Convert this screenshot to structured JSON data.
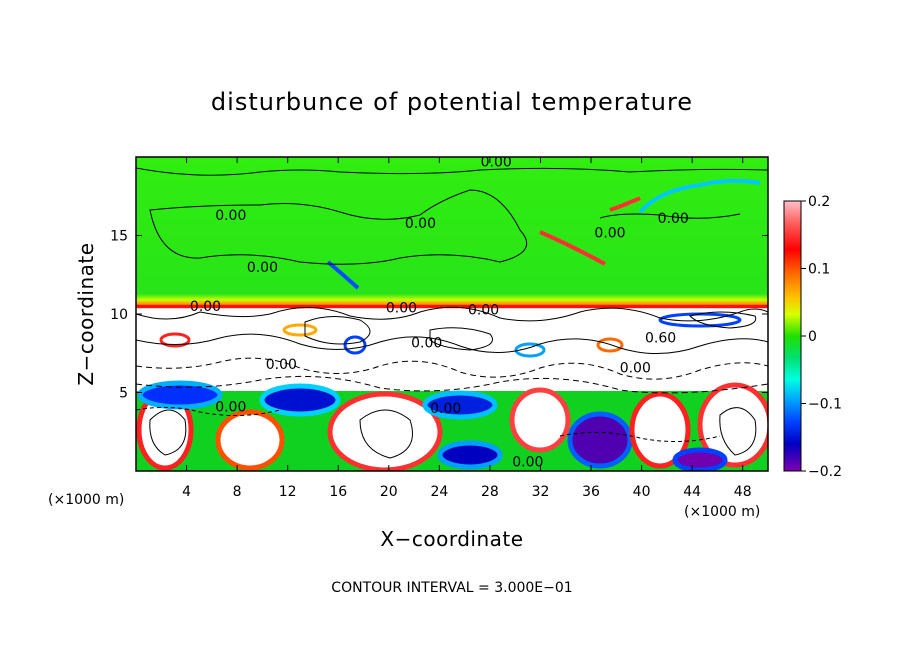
{
  "chart_data": {
    "type": "heatmap",
    "title": "disturbunce of potential temperature",
    "xlabel": "X−coordinate",
    "ylabel": "Z−coordinate",
    "x_unit": "(×1000 m)",
    "y_unit": "(×1000 m)",
    "xlim": [
      0,
      50
    ],
    "ylim": [
      0,
      20
    ],
    "x_ticks": [
      4,
      8,
      12,
      16,
      20,
      24,
      28,
      32,
      36,
      40,
      44,
      48
    ],
    "y_ticks": [
      5,
      10,
      15
    ],
    "colorbar": {
      "vmin": -0.2,
      "vmax": 0.2,
      "ticks": [
        0.2,
        0.1,
        0,
        -0.1,
        -0.2
      ],
      "tick_labels": [
        "0.2",
        "0.1",
        "0",
        "−0.1",
        "−0.2"
      ],
      "colors": [
        "#ffc0cb",
        "#ff4040",
        "#ff0000",
        "#ff6a00",
        "#ffaa00",
        "#ffe100",
        "#b0ff00",
        "#30ff00",
        "#00e050",
        "#00ffd0",
        "#00b0ff",
        "#0060ff",
        "#0000d0",
        "#6000c0",
        "#9000a0"
      ]
    },
    "field_regions": {
      "upper_layer_z": [
        10.5,
        20
      ],
      "upper_layer_value": 0.0,
      "strong_gradient_z": 10.3,
      "mixing_layer_z": [
        4.5,
        10.3
      ],
      "lower_layer_z": [
        0,
        4.5
      ]
    },
    "contour_labels": [
      {
        "x": 28.5,
        "z": 19.7,
        "text": "0.00"
      },
      {
        "x": 7.5,
        "z": 16.3,
        "text": "0.00"
      },
      {
        "x": 22.5,
        "z": 15.8,
        "text": "0.00"
      },
      {
        "x": 37.5,
        "z": 15.2,
        "text": "0.00"
      },
      {
        "x": 42.5,
        "z": 16.1,
        "text": "0.00"
      },
      {
        "x": 10.0,
        "z": 13.0,
        "text": "0.00"
      },
      {
        "x": 5.5,
        "z": 10.5,
        "text": "0.00"
      },
      {
        "x": 21.0,
        "z": 10.4,
        "text": "0.00"
      },
      {
        "x": 27.5,
        "z": 10.3,
        "text": "0.00"
      },
      {
        "x": 41.5,
        "z": 8.5,
        "text": "0.60"
      },
      {
        "x": 23.0,
        "z": 8.2,
        "text": "0.00"
      },
      {
        "x": 11.5,
        "z": 6.8,
        "text": "0.00"
      },
      {
        "x": 39.5,
        "z": 6.6,
        "text": "0.00"
      },
      {
        "x": 7.5,
        "z": 4.1,
        "text": "0.00"
      },
      {
        "x": 24.5,
        "z": 4.0,
        "text": "0.00"
      },
      {
        "x": 31.0,
        "z": 0.6,
        "text": "0.00"
      }
    ],
    "contour_interval_text": "CONTOUR INTERVAL = 3.000E−01"
  }
}
